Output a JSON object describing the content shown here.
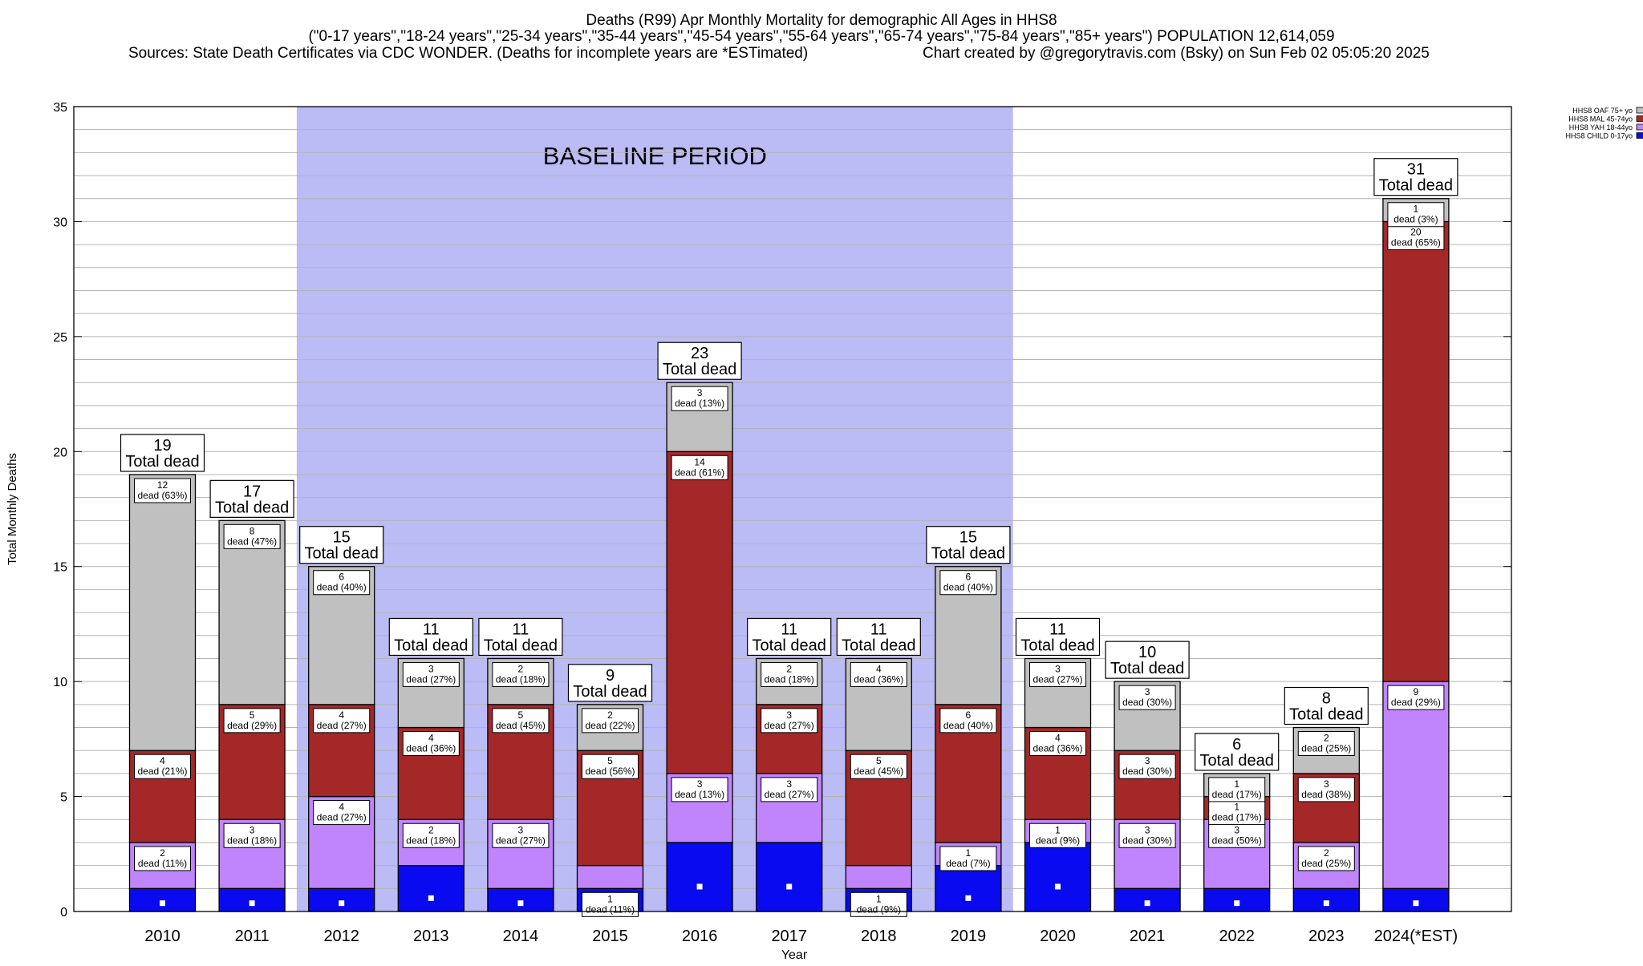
{
  "header": {
    "title_line1": "Deaths (R99) Apr Monthly Mortality for demographic All Ages in HHS8",
    "title_line2": "(\"0-17 years\",\"18-24 years\",\"25-34 years\",\"35-44 years\",\"45-54 years\",\"55-64 years\",\"65-74 years\",\"75-84 years\",\"85+ years\") POPULATION 12,614,059",
    "sources": "Sources: State Death Certificates via CDC WONDER. (Deaths for incomplete years are *ESTimated)",
    "credit": "Chart created by @gregorytravis.com (Bsky) on Sun Feb 02 05:05:20 2025"
  },
  "colors": {
    "child": "#0a0af0",
    "yah": "#c084fc",
    "mal": "#a52828",
    "oaf": "#c0c0c0",
    "baseline": "#bbbbf6"
  },
  "chart_data": {
    "type": "bar",
    "stacked": true,
    "categories": [
      "2010",
      "2011",
      "2012",
      "2013",
      "2014",
      "2015",
      "2016",
      "2017",
      "2018",
      "2019",
      "2020",
      "2021",
      "2022",
      "2023",
      "2024(*EST)"
    ],
    "series": [
      {
        "name": "HHS8 CHILD 0-17yo",
        "key": "child",
        "values": [
          1,
          1,
          1,
          2,
          1,
          1,
          3,
          3,
          1,
          2,
          3,
          1,
          1,
          1,
          1
        ]
      },
      {
        "name": "HHS8 YAH 18-44yo",
        "key": "yah",
        "values": [
          2,
          3,
          4,
          2,
          3,
          1,
          3,
          3,
          1,
          1,
          1,
          3,
          3,
          2,
          9
        ]
      },
      {
        "name": "HHS8 MAL 45-74yo",
        "key": "mal",
        "values": [
          4,
          5,
          4,
          4,
          5,
          5,
          14,
          3,
          5,
          6,
          4,
          3,
          1,
          3,
          20
        ]
      },
      {
        "name": "HHS8 OAF 75+ yo",
        "key": "oaf",
        "values": [
          12,
          8,
          6,
          3,
          2,
          2,
          3,
          2,
          4,
          6,
          3,
          3,
          1,
          2,
          1
        ]
      }
    ],
    "segment_labels": [
      [
        "",
        "2\ndead (11%)",
        "4\ndead (21%)",
        "12\ndead (63%)"
      ],
      [
        "",
        "3\ndead (18%)",
        "5\ndead (29%)",
        "8\ndead (47%)"
      ],
      [
        "",
        "4\ndead (27%)",
        "4\ndead (27%)",
        "6\ndead (40%)"
      ],
      [
        "",
        "2\ndead (18%)",
        "4\ndead (36%)",
        "3\ndead (27%)"
      ],
      [
        "",
        "3\ndead (27%)",
        "5\ndead (45%)",
        "2\ndead (18%)"
      ],
      [
        "1\ndead (11%)",
        "",
        "5\ndead (56%)",
        "2\ndead (22%)"
      ],
      [
        "",
        "3\ndead (13%)",
        "14\ndead (61%)",
        "3\ndead (13%)"
      ],
      [
        "",
        "3\ndead (27%)",
        "3\ndead (27%)",
        "2\ndead (18%)"
      ],
      [
        "1\ndead (9%)",
        "",
        "5\ndead (45%)",
        "4\ndead (36%)"
      ],
      [
        "",
        "1\ndead (7%)",
        "6\ndead (40%)",
        "6\ndead (40%)"
      ],
      [
        "",
        "1\ndead (9%)",
        "4\ndead (36%)",
        "3\ndead (27%)"
      ],
      [
        "",
        "3\ndead (30%)",
        "3\ndead (30%)",
        "3\ndead (30%)"
      ],
      [
        "",
        "3\ndead (50%)",
        "1\ndead (17%)",
        "1\ndead (17%)"
      ],
      [
        "",
        "2\ndead (25%)",
        "3\ndead (38%)",
        "2\ndead (25%)"
      ],
      [
        "",
        "9\ndead (29%)",
        "20\ndead (65%)",
        "1\ndead (3%)"
      ]
    ],
    "totals": [
      19,
      17,
      15,
      11,
      11,
      9,
      23,
      11,
      11,
      15,
      11,
      10,
      6,
      8,
      31
    ],
    "total_suffix": "Total dead",
    "xlabel": "Year",
    "ylabel": "Total Monthly Deaths",
    "ylim": [
      0,
      35
    ],
    "yticks": [
      0,
      5,
      10,
      15,
      20,
      25,
      30,
      35
    ],
    "grid": true,
    "legend_position": "top-right",
    "annotation": {
      "label": "BASELINE PERIOD",
      "start_category": "2012",
      "end_category": "2019"
    }
  }
}
